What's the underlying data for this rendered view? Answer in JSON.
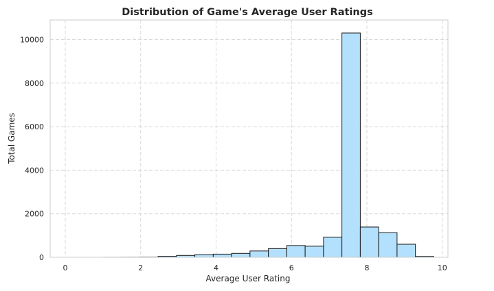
{
  "chart_data": {
    "type": "bar",
    "title": "Distribution of Game's Average User Ratings",
    "xlabel": "Average User Rating",
    "ylabel": "Total Games",
    "xlim": [
      -0.4,
      10.15
    ],
    "ylim": [
      0,
      10900
    ],
    "xticks": [
      0,
      2,
      4,
      6,
      8,
      10
    ],
    "yticks": [
      0,
      2000,
      4000,
      6000,
      8000,
      10000
    ],
    "grid": true,
    "bin_edges": [
      1.0,
      1.4875,
      1.975,
      2.4625,
      2.95,
      3.4375,
      3.925,
      4.4125,
      4.9,
      5.3875,
      5.875,
      6.3625,
      6.85,
      7.3375,
      7.825,
      8.3125,
      8.8,
      9.2875,
      9.775
    ],
    "values": [
      2,
      5,
      10,
      45,
      85,
      120,
      145,
      180,
      290,
      400,
      540,
      510,
      920,
      10300,
      1390,
      1130,
      600,
      40
    ]
  },
  "colors": {
    "bar_fill": "#b3e0fc",
    "bar_edge": "#1a1a1a"
  }
}
